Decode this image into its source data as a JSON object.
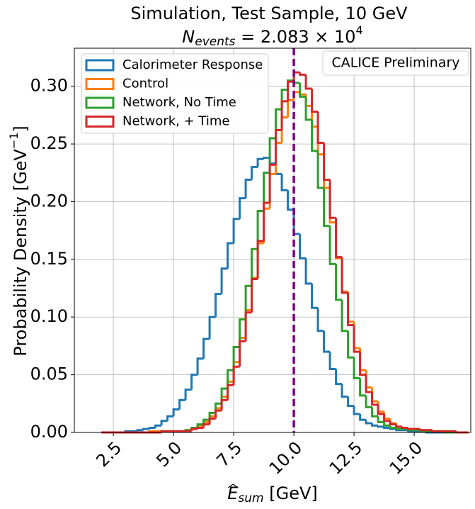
{
  "chart_data": {
    "type": "histogram",
    "title": "Simulation, Test Sample, 10 GeV",
    "subtitle": {
      "symbol": "N",
      "subscript": "events",
      "text": " = 2.083 × 10",
      "superscript": "4"
    },
    "xlabel": {
      "symbol": "E",
      "subscript": "sum",
      "unit": " [GeV]"
    },
    "ylabel": {
      "text": "Probability Density [GeV",
      "superscript": "−1",
      "end": "]"
    },
    "annotation": "CALICE Preliminary",
    "bins": [
      2.0,
      2.25,
      2.5,
      2.75,
      3.0,
      3.25,
      3.5,
      3.75,
      4.0,
      4.25,
      4.5,
      4.75,
      5.0,
      5.25,
      5.5,
      5.75,
      6.0,
      6.25,
      6.5,
      6.75,
      7.0,
      7.25,
      7.5,
      7.75,
      8.0,
      8.25,
      8.5,
      8.75,
      9.0,
      9.25,
      9.5,
      9.75,
      10.0,
      10.25,
      10.5,
      10.75,
      11.0,
      11.25,
      11.5,
      11.75,
      12.0,
      12.25,
      12.5,
      12.75,
      13.0,
      13.25,
      13.5,
      13.75,
      14.0,
      14.25,
      14.5,
      14.75,
      15.0,
      15.25,
      15.5,
      15.75,
      16.0,
      16.25,
      16.5,
      16.75,
      17.0,
      17.25
    ],
    "series": [
      {
        "name": "Calorimeter Response",
        "color": "#1f77b4",
        "values": [
          0,
          0,
          0,
          0,
          0.001,
          0.001,
          0.002,
          0.003,
          0.004,
          0.006,
          0.01,
          0.014,
          0.02,
          0.028,
          0.037,
          0.05,
          0.064,
          0.081,
          0.1,
          0.12,
          0.142,
          0.164,
          0.185,
          0.203,
          0.219,
          0.23,
          0.237,
          0.238,
          0.233,
          0.224,
          0.21,
          0.193,
          0.172,
          0.151,
          0.129,
          0.108,
          0.088,
          0.07,
          0.055,
          0.042,
          0.031,
          0.023,
          0.016,
          0.011,
          0.008,
          0.006,
          0.005,
          0.004,
          0.003,
          0.002,
          0.002,
          0.001,
          0.001,
          0.001,
          0,
          0,
          0,
          0,
          0,
          0,
          0
        ]
      },
      {
        "name": "Control",
        "color": "#ff7f0e",
        "values": [
          0,
          0,
          0,
          0,
          0,
          0,
          0,
          0,
          0.001,
          0.001,
          0.001,
          0.001,
          0.001,
          0.001,
          0.002,
          0.003,
          0.006,
          0.009,
          0.014,
          0.021,
          0.031,
          0.044,
          0.061,
          0.082,
          0.106,
          0.134,
          0.164,
          0.194,
          0.224,
          0.251,
          0.273,
          0.288,
          0.295,
          0.293,
          0.283,
          0.265,
          0.241,
          0.212,
          0.182,
          0.151,
          0.122,
          0.096,
          0.073,
          0.054,
          0.039,
          0.027,
          0.018,
          0.012,
          0.008,
          0.005,
          0.004,
          0.003,
          0.003,
          0.002,
          0.002,
          0.001,
          0.001,
          0.001,
          0.001,
          0,
          0
        ]
      },
      {
        "name": "Network, No Time",
        "color": "#2ca02c",
        "values": [
          0,
          0,
          0,
          0,
          0,
          0,
          0,
          0,
          0,
          0,
          0.001,
          0.001,
          0.001,
          0.001,
          0.002,
          0.004,
          0.007,
          0.011,
          0.017,
          0.025,
          0.038,
          0.054,
          0.074,
          0.098,
          0.127,
          0.159,
          0.192,
          0.225,
          0.255,
          0.28,
          0.297,
          0.305,
          0.303,
          0.291,
          0.271,
          0.244,
          0.212,
          0.179,
          0.146,
          0.115,
          0.088,
          0.065,
          0.047,
          0.032,
          0.022,
          0.014,
          0.009,
          0.006,
          0.004,
          0.003,
          0.003,
          0.002,
          0.002,
          0.001,
          0.001,
          0.001,
          0.001,
          0,
          0,
          0,
          0
        ]
      },
      {
        "name": "Network, + Time",
        "color": "#d62728",
        "values": [
          0,
          0,
          0,
          0,
          0,
          0,
          0,
          0,
          0,
          0,
          0.001,
          0.001,
          0.001,
          0.001,
          0.001,
          0.003,
          0.004,
          0.007,
          0.012,
          0.019,
          0.028,
          0.041,
          0.057,
          0.079,
          0.104,
          0.133,
          0.166,
          0.199,
          0.232,
          0.262,
          0.287,
          0.304,
          0.312,
          0.31,
          0.298,
          0.278,
          0.251,
          0.219,
          0.186,
          0.152,
          0.121,
          0.093,
          0.07,
          0.05,
          0.035,
          0.024,
          0.016,
          0.01,
          0.007,
          0.005,
          0.004,
          0.003,
          0.003,
          0.002,
          0.002,
          0.001,
          0.001,
          0.001,
          0.001,
          0,
          0
        ]
      }
    ],
    "reference_line": {
      "x": 10,
      "color": "#800080"
    },
    "xlim": [
      0.88,
      17.35
    ],
    "ylim": [
      0,
      0.333
    ],
    "xticks": [
      2.5,
      {
        "value": 5,
        "label": "5.0"
      },
      7.5,
      {
        "value": 10,
        "label": "10.0"
      },
      12.5,
      {
        "value": 15,
        "label": "15.0"
      }
    ],
    "yticks": [
      {
        "value": 0,
        "label": "0.00"
      },
      {
        "value": 0.05,
        "label": "0.05"
      },
      {
        "value": 0.1,
        "label": "0.10"
      },
      {
        "value": 0.15,
        "label": "0.15"
      },
      {
        "value": 0.2,
        "label": "0.20"
      },
      {
        "value": 0.25,
        "label": "0.25"
      },
      {
        "value": 0.3,
        "label": "0.30"
      }
    ],
    "grid": true,
    "legend": "upper left"
  }
}
